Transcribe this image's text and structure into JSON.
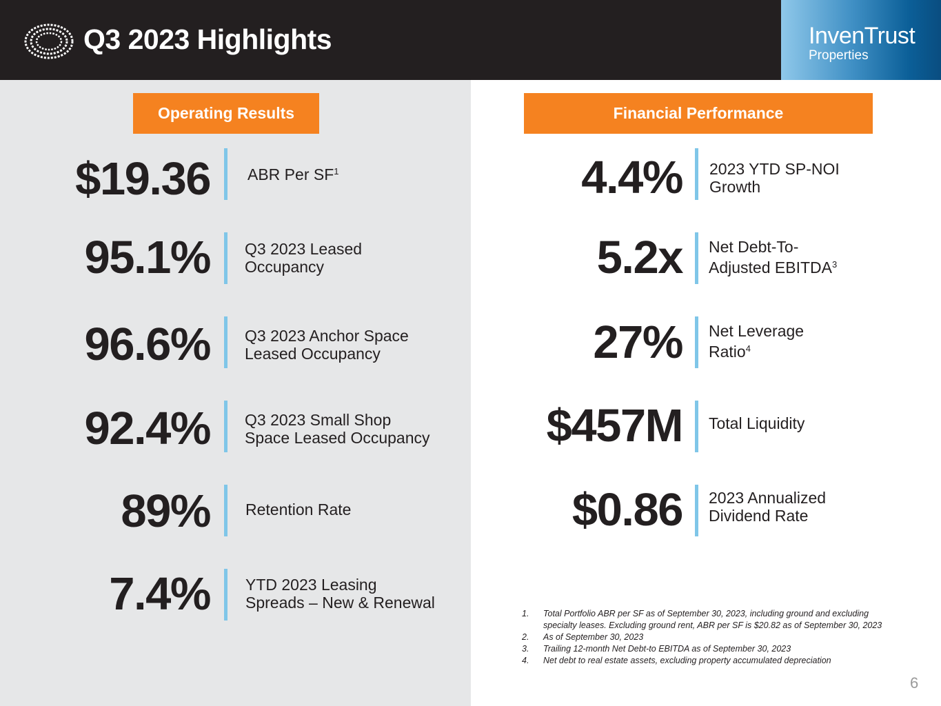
{
  "header": {
    "title": "Q3 2023 Highlights",
    "brand_name": "InvenTrust",
    "brand_sub": "Properties"
  },
  "colors": {
    "header_bg": "#231f20",
    "accent_orange": "#f58220",
    "divider_blue": "#7fc6e8",
    "panel_gray": "#e6e7e8"
  },
  "operating": {
    "heading": "Operating Results",
    "metrics": [
      {
        "value": "$19.36",
        "label": "ABR Per SF",
        "sup": "1"
      },
      {
        "value": "95.1%",
        "label": "Q3 2023 Leased\nOccupancy",
        "sup": ""
      },
      {
        "value": "96.6%",
        "label": "Q3 2023 Anchor Space\nLeased Occupancy",
        "sup": ""
      },
      {
        "value": "92.4%",
        "label": "Q3 2023 Small Shop\nSpace Leased Occupancy",
        "sup": ""
      },
      {
        "value": "89%",
        "label": "Retention Rate",
        "sup": ""
      },
      {
        "value": "7.4%",
        "label": "YTD 2023 Leasing\nSpreads – New & Renewal",
        "sup": ""
      }
    ]
  },
  "financial": {
    "heading": "Financial Performance",
    "metrics": [
      {
        "value": "4.4%",
        "label": "2023 YTD SP-NOI\nGrowth",
        "sup": ""
      },
      {
        "value": "5.2x",
        "label": "Net Debt-To-\nAdjusted EBITDA",
        "sup": "3"
      },
      {
        "value": "27%",
        "label": "Net Leverage\nRatio",
        "sup": "4"
      },
      {
        "value": "$457M",
        "label": "Total Liquidity",
        "sup": ""
      },
      {
        "value": "$0.86",
        "label": "2023 Annualized\nDividend Rate",
        "sup": ""
      }
    ]
  },
  "footnotes": [
    {
      "num": "1.",
      "text": "Total Portfolio ABR per SF as of September 30, 2023, including ground and excluding specialty leases. Excluding ground rent, ABR per SF is $20.82 as of September 30, 2023"
    },
    {
      "num": "2.",
      "text": "As of September 30, 2023"
    },
    {
      "num": "3.",
      "text": "Trailing 12-month Net Debt-to EBITDA as of September 30, 2023"
    },
    {
      "num": "4.",
      "text": "Net debt to real estate assets, excluding property accumulated depreciation"
    }
  ],
  "page_number": "6"
}
